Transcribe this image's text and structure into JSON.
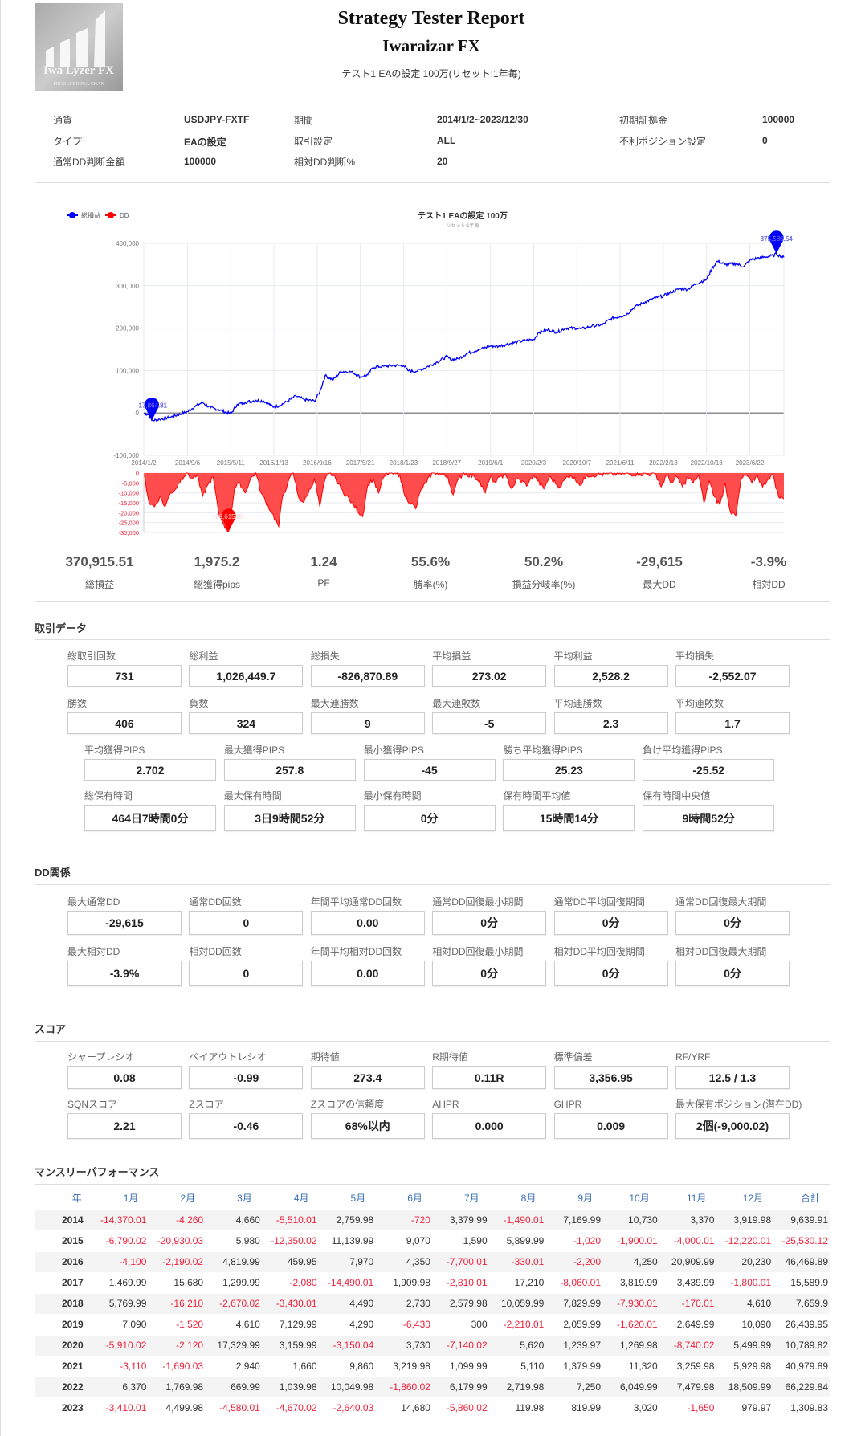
{
  "logo": {
    "text": "Iwa Lyzer FX",
    "sub": "PRODUCED  IWA CHAN"
  },
  "header": {
    "title": "Strategy Tester Report",
    "subtitle": "Iwaraizar FX",
    "description": "テスト1 EAの設定 100万(リセット:1年毎)"
  },
  "info": [
    {
      "label": "通貨",
      "value": "USDJPY-FXTF"
    },
    {
      "label": "期間",
      "value": "2014/1/2~2023/12/30"
    },
    {
      "label": "初期証拠金",
      "value": "100000"
    },
    {
      "label": "タイプ",
      "value": "EAの設定"
    },
    {
      "label": "取引設定",
      "value": "ALL"
    },
    {
      "label": "不利ポジション設定",
      "value": "0"
    },
    {
      "label": "通常DD判断金額",
      "value": "100000"
    },
    {
      "label": "相対DD判断%",
      "value": "20"
    }
  ],
  "colors": {
    "equity": "#0000ff",
    "dd": "#ff0000",
    "dd_fill": "#ff4d4d",
    "negative": "#f0223c",
    "header": "#3a6fb5"
  },
  "chart_data": {
    "type": "line",
    "title": "テスト1 EAの設定 100万",
    "subtitle": "リセット:1年毎",
    "legend": [
      {
        "name": "総損益",
        "color": "#0000ff"
      },
      {
        "name": "DD",
        "color": "#ff0000"
      }
    ],
    "legend_position": "top-left",
    "x_unit": "months since 2014/1/2",
    "xlim": [
      0,
      120
    ],
    "x_ticks": [
      {
        "x": 0,
        "label": "2014/1/2"
      },
      {
        "x": 8.2,
        "label": "2014/9/6"
      },
      {
        "x": 16.3,
        "label": "2015/5/11"
      },
      {
        "x": 24.4,
        "label": "2016/1/13"
      },
      {
        "x": 32.5,
        "label": "2016/9/16"
      },
      {
        "x": 40.6,
        "label": "2017/5/21"
      },
      {
        "x": 48.7,
        "label": "2018/1/23"
      },
      {
        "x": 56.8,
        "label": "2018/9/27"
      },
      {
        "x": 65,
        "label": "2019/6/1"
      },
      {
        "x": 73.1,
        "label": "2020/2/3"
      },
      {
        "x": 81.2,
        "label": "2020/10/7"
      },
      {
        "x": 89.3,
        "label": "2021/6/11"
      },
      {
        "x": 97.4,
        "label": "2022/2/13"
      },
      {
        "x": 105.5,
        "label": "2022/10/18"
      },
      {
        "x": 113.6,
        "label": "2023/6/22"
      }
    ],
    "equity": {
      "ylim": [
        -100000,
        400000
      ],
      "y_ticks": [
        "400,000",
        "300,000",
        "200,000",
        "100,000",
        "0",
        "-100,000"
      ],
      "y_tick_values": [
        400000,
        300000,
        200000,
        100000,
        0,
        -100000
      ],
      "points": [
        [
          0,
          0
        ],
        [
          1,
          -5000
        ],
        [
          1.5,
          -17864.81
        ],
        [
          3,
          -15000
        ],
        [
          5,
          -10000
        ],
        [
          8.2,
          3000
        ],
        [
          9.5,
          15000
        ],
        [
          11,
          25000
        ],
        [
          12.5,
          12000
        ],
        [
          14,
          8000
        ],
        [
          16.3,
          -2000
        ],
        [
          17.5,
          20000
        ],
        [
          19,
          25000
        ],
        [
          21,
          30000
        ],
        [
          22.5,
          28000
        ],
        [
          24.4,
          14000
        ],
        [
          25.5,
          18000
        ],
        [
          27,
          28000
        ],
        [
          28.5,
          40000
        ],
        [
          30,
          32000
        ],
        [
          32,
          28000
        ],
        [
          33,
          50000
        ],
        [
          34,
          88000
        ],
        [
          35.5,
          78000
        ],
        [
          37,
          98000
        ],
        [
          39,
          97000
        ],
        [
          40.6,
          85000
        ],
        [
          42,
          90000
        ],
        [
          43,
          108000
        ],
        [
          45,
          110000
        ],
        [
          47,
          112000
        ],
        [
          48.7,
          112000
        ],
        [
          49.5,
          100000
        ],
        [
          51,
          98000
        ],
        [
          53,
          108000
        ],
        [
          55,
          120000
        ],
        [
          56.8,
          133000
        ],
        [
          57.5,
          126000
        ],
        [
          59,
          128000
        ],
        [
          60.5,
          140000
        ],
        [
          63,
          150000
        ],
        [
          65,
          158000
        ],
        [
          66.5,
          157000
        ],
        [
          68,
          162000
        ],
        [
          70,
          167000
        ],
        [
          72,
          172000
        ],
        [
          73.1,
          173000
        ],
        [
          74,
          190000
        ],
        [
          76,
          196000
        ],
        [
          77.5,
          190000
        ],
        [
          79,
          200000
        ],
        [
          81.2,
          200000
        ],
        [
          82,
          198000
        ],
        [
          84,
          205000
        ],
        [
          86,
          208000
        ],
        [
          87.5,
          222000
        ],
        [
          89.3,
          228000
        ],
        [
          90.5,
          232000
        ],
        [
          92,
          250000
        ],
        [
          94,
          262000
        ],
        [
          96,
          272000
        ],
        [
          97.4,
          276000
        ],
        [
          99,
          285000
        ],
        [
          100.5,
          293000
        ],
        [
          102,
          292000
        ],
        [
          103.5,
          305000
        ],
        [
          105.5,
          315000
        ],
        [
          106.5,
          340000
        ],
        [
          107.5,
          358000
        ],
        [
          109,
          350000
        ],
        [
          111,
          352000
        ],
        [
          112.5,
          345000
        ],
        [
          113.6,
          360000
        ],
        [
          115,
          365000
        ],
        [
          116.5,
          368000
        ],
        [
          118,
          371000
        ],
        [
          118.6,
          375586.54
        ],
        [
          119.3,
          370000
        ],
        [
          120,
          367000
        ]
      ],
      "markers": [
        {
          "x": 1.5,
          "value": -17864.81,
          "label": "-17,864.81"
        },
        {
          "x": 118.6,
          "value": 375586.54,
          "label": "375,586.54"
        }
      ]
    },
    "drawdown": {
      "ylim": [
        -30000,
        0
      ],
      "y_ticks": [
        "0",
        "-5,000",
        "-10,000",
        "-15,000",
        "-20,000",
        "-25,000",
        "-30,000"
      ],
      "y_tick_values": [
        0,
        -5000,
        -10000,
        -15000,
        -20000,
        -25000,
        -30000
      ],
      "points": [
        [
          0,
          0
        ],
        [
          1,
          -15000
        ],
        [
          2,
          -17000
        ],
        [
          3,
          -12000
        ],
        [
          4,
          -17000
        ],
        [
          5,
          -10000
        ],
        [
          6,
          -8000
        ],
        [
          7,
          -3000
        ],
        [
          8,
          0
        ],
        [
          9,
          -3000
        ],
        [
          10,
          -1000
        ],
        [
          11,
          -12000
        ],
        [
          12,
          -6000
        ],
        [
          13,
          -2000
        ],
        [
          14,
          -20000
        ],
        [
          15,
          -26000
        ],
        [
          15.9,
          -29615
        ],
        [
          17,
          -8000
        ],
        [
          18,
          -5000
        ],
        [
          19,
          -10000
        ],
        [
          20,
          -3000
        ],
        [
          21,
          0
        ],
        [
          22,
          -10000
        ],
        [
          24,
          -20000
        ],
        [
          25.3,
          -27000
        ],
        [
          26,
          -12000
        ],
        [
          27,
          -5000
        ],
        [
          28,
          0
        ],
        [
          29,
          -12000
        ],
        [
          30,
          -15000
        ],
        [
          32,
          -3000
        ],
        [
          33,
          -17000
        ],
        [
          34,
          -3000
        ],
        [
          35,
          0
        ],
        [
          36,
          -3000
        ],
        [
          37,
          -8000
        ],
        [
          39,
          -15000
        ],
        [
          41,
          -22000
        ],
        [
          42,
          -6000
        ],
        [
          43,
          -3000
        ],
        [
          44,
          -10000
        ],
        [
          45,
          -2000
        ],
        [
          46,
          0
        ],
        [
          48,
          -1000
        ],
        [
          49,
          -12000
        ],
        [
          51,
          -18000
        ],
        [
          52,
          -8000
        ],
        [
          53,
          -5000
        ],
        [
          54,
          0
        ],
        [
          55,
          0
        ],
        [
          57,
          -2000
        ],
        [
          58,
          -11000
        ],
        [
          59,
          -3000
        ],
        [
          60,
          0
        ],
        [
          62,
          -2000
        ],
        [
          63,
          -4000
        ],
        [
          64,
          -10000
        ],
        [
          65,
          -2000
        ],
        [
          66,
          -5000
        ],
        [
          67,
          -1000
        ],
        [
          68,
          -2000
        ],
        [
          69,
          -8000
        ],
        [
          70,
          -3000
        ],
        [
          72,
          -6000
        ],
        [
          73,
          -1000
        ],
        [
          75,
          -8000
        ],
        [
          76,
          -2000
        ],
        [
          78,
          -7000
        ],
        [
          79,
          -3000
        ],
        [
          80,
          -1000
        ],
        [
          82,
          -6000
        ],
        [
          83,
          -1000
        ],
        [
          85,
          -1000
        ],
        [
          87,
          -500
        ],
        [
          90,
          -500
        ],
        [
          93,
          -500
        ],
        [
          96,
          -500
        ],
        [
          97,
          -7000
        ],
        [
          98,
          -1000
        ],
        [
          99,
          -5000
        ],
        [
          100,
          -2000
        ],
        [
          101,
          -7000
        ],
        [
          102,
          -2000
        ],
        [
          103,
          -5000
        ],
        [
          104,
          -1000
        ],
        [
          105,
          -15000
        ],
        [
          106,
          -4000
        ],
        [
          107,
          -12000
        ],
        [
          108,
          -16000
        ],
        [
          109,
          -5000
        ],
        [
          110,
          -20000
        ],
        [
          111,
          -21500
        ],
        [
          112,
          -3000
        ],
        [
          113,
          -1000
        ],
        [
          114,
          -5000
        ],
        [
          115,
          -1000
        ],
        [
          116,
          -7000
        ],
        [
          117,
          -3000
        ],
        [
          118,
          -1000
        ],
        [
          119,
          -12000
        ],
        [
          120,
          -13000
        ]
      ],
      "markers": [
        {
          "x": 15.9,
          "value": -29615,
          "label": "-29,615.00"
        }
      ]
    }
  },
  "summary": [
    {
      "value": "370,915.51",
      "label": "総損益"
    },
    {
      "value": "1,975.2",
      "label": "総獲得pips"
    },
    {
      "value": "1.24",
      "label": "PF"
    },
    {
      "value": "55.6%",
      "label": "勝率(%)"
    },
    {
      "value": "50.2%",
      "label": "損益分岐率(%)"
    },
    {
      "value": "-29,615",
      "label": "最大DD"
    },
    {
      "value": "-3.9%",
      "label": "相対DD"
    }
  ],
  "sections": {
    "trade": "取引データ",
    "dd": "DD関係",
    "score": "スコア",
    "monthly": "マンスリーパフォーマンス"
  },
  "trade_rows": [
    [
      {
        "label": "総取引回数",
        "value": "731"
      },
      {
        "label": "総利益",
        "value": "1,026,449.7"
      },
      {
        "label": "総損失",
        "value": "-826,870.89"
      },
      {
        "label": "平均損益",
        "value": "273.02"
      },
      {
        "label": "平均利益",
        "value": "2,528.2"
      },
      {
        "label": "平均損失",
        "value": "-2,552.07"
      }
    ],
    [
      {
        "label": "勝数",
        "value": "406"
      },
      {
        "label": "負数",
        "value": "324"
      },
      {
        "label": "最大連勝数",
        "value": "9"
      },
      {
        "label": "最大連敗数",
        "value": "-5"
      },
      {
        "label": "平均連勝数",
        "value": "2.3"
      },
      {
        "label": "平均連敗数",
        "value": "1.7"
      }
    ],
    [
      {
        "label": "平均獲得PIPS",
        "value": "2.702"
      },
      {
        "label": "最大獲得PIPS",
        "value": "257.8"
      },
      {
        "label": "最小獲得PIPS",
        "value": "-45"
      },
      {
        "label": "勝ち平均獲得PIPS",
        "value": "25.23"
      },
      {
        "label": "負け平均獲得PIPS",
        "value": "-25.52"
      }
    ],
    [
      {
        "label": "総保有時間",
        "value": "464日7時間0分"
      },
      {
        "label": "最大保有時間",
        "value": "3日9時間52分"
      },
      {
        "label": "最小保有時間",
        "value": "0分"
      },
      {
        "label": "保有時間平均値",
        "value": "15時間14分"
      },
      {
        "label": "保有時間中央値",
        "value": "9時間52分"
      }
    ]
  ],
  "dd_rows": [
    [
      {
        "label": "最大通常DD",
        "value": "-29,615"
      },
      {
        "label": "通常DD回数",
        "value": "0"
      },
      {
        "label": "年間平均通常DD回数",
        "value": "0.00"
      },
      {
        "label": "通常DD回復最小期間",
        "value": "0分"
      },
      {
        "label": "通常DD平均回復期間",
        "value": "0分"
      },
      {
        "label": "通常DD回復最大期間",
        "value": "0分"
      }
    ],
    [
      {
        "label": "最大相対DD",
        "value": "-3.9%"
      },
      {
        "label": "相対DD回数",
        "value": "0"
      },
      {
        "label": "年間平均相対DD回数",
        "value": "0.00"
      },
      {
        "label": "相対DD回復最小期間",
        "value": "0分"
      },
      {
        "label": "相対DD平均回復期間",
        "value": "0分"
      },
      {
        "label": "相対DD回復最大期間",
        "value": "0分"
      }
    ]
  ],
  "score_rows": [
    [
      {
        "label": "シャープレシオ",
        "value": "0.08"
      },
      {
        "label": "ペイアウトレシオ",
        "value": "-0.99"
      },
      {
        "label": "期待値",
        "value": "273.4"
      },
      {
        "label": "R期待値",
        "value": "0.11R"
      },
      {
        "label": "標準偏差",
        "value": "3,356.95"
      },
      {
        "label": "RF/YRF",
        "value": "12.5 / 1.3"
      }
    ],
    [
      {
        "label": "SQNスコア",
        "value": "2.21"
      },
      {
        "label": "Zスコア",
        "value": "-0.46"
      },
      {
        "label": "Zスコアの信頼度",
        "value": "68%以内"
      },
      {
        "label": "AHPR",
        "value": "0.000"
      },
      {
        "label": "GHPR",
        "value": "0.009"
      },
      {
        "label": "最大保有ポジション(潜在DD)",
        "value": "2個(-9,000.02)"
      }
    ]
  ],
  "monthly": {
    "headers": [
      "年",
      "1月",
      "2月",
      "3月",
      "4月",
      "5月",
      "6月",
      "7月",
      "8月",
      "9月",
      "10月",
      "11月",
      "12月",
      "合計"
    ],
    "rows": [
      [
        "2014",
        "-14,370.01",
        "-4,260",
        "4,660",
        "-5,510.01",
        "2,759.98",
        "-720",
        "3,379.99",
        "-1,490.01",
        "7,169.99",
        "10,730",
        "3,370",
        "3,919.98",
        "9,639.91"
      ],
      [
        "2015",
        "-6,790.02",
        "-20,930.03",
        "5,980",
        "-12,350.02",
        "11,139.99",
        "9,070",
        "1,590",
        "5,899.99",
        "-1,020",
        "-1,900.01",
        "-4,000.01",
        "-12,220.01",
        "-25,530.12"
      ],
      [
        "2016",
        "-4,100",
        "-2,190.02",
        "4,819.99",
        "459.95",
        "7,970",
        "4,350",
        "-7,700.01",
        "-330.01",
        "-2,200",
        "4,250",
        "20,909.99",
        "20,230",
        "46,469.89"
      ],
      [
        "2017",
        "1,469.99",
        "15,680",
        "1,299.99",
        "-2,080",
        "-14,490.01",
        "1,909.98",
        "-2,810.01",
        "17,210",
        "-8,060.01",
        "3,819.99",
        "3,439.99",
        "-1,800.01",
        "15,589.9"
      ],
      [
        "2018",
        "5,769.99",
        "-16,210",
        "-2,670.02",
        "-3,430.01",
        "4,490",
        "2,730",
        "2,579.98",
        "10,059.99",
        "7,829.99",
        "-7,930.01",
        "-170.01",
        "4,610",
        "7,659.9"
      ],
      [
        "2019",
        "7,090",
        "-1,520",
        "4,610",
        "7,129.99",
        "4,290",
        "-6,430",
        "300",
        "-2,210.01",
        "2,059.99",
        "-1,620.01",
        "2,649.99",
        "10,090",
        "26,439.95"
      ],
      [
        "2020",
        "-5,910.02",
        "-2,120",
        "17,329.99",
        "3,159.99",
        "-3,150.04",
        "3,730",
        "-7,140.02",
        "5,620",
        "1,239.97",
        "1,269.98",
        "-8,740.02",
        "5,499.99",
        "10,789.82"
      ],
      [
        "2021",
        "-3,110",
        "-1,690.03",
        "2,940",
        "1,660",
        "9,860",
        "3,219.98",
        "1,099.99",
        "5,110",
        "1,379.99",
        "11,320",
        "3,259.98",
        "5,929.98",
        "40,979.89"
      ],
      [
        "2022",
        "6,370",
        "1,769.98",
        "669.99",
        "1,039.98",
        "10,049.98",
        "-1,860.02",
        "6,179.99",
        "2,719.98",
        "7,250",
        "6,049.99",
        "7,479.98",
        "18,509.99",
        "66,229.84"
      ],
      [
        "2023",
        "-3,410.01",
        "4,499.98",
        "-4,580.01",
        "-4,670.02",
        "-2,640.03",
        "14,680",
        "-5,860.02",
        "119.98",
        "819.99",
        "3,020",
        "-1,650",
        "979.97",
        "1,309.83"
      ]
    ]
  }
}
